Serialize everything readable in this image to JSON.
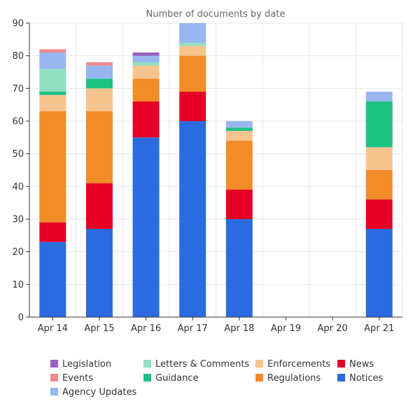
{
  "chart_data": {
    "type": "bar",
    "stacked": true,
    "title": "Number of documents by date",
    "xlabel": "",
    "ylabel": "",
    "ylim": [
      0,
      90
    ],
    "yticks": [
      0,
      10,
      20,
      30,
      40,
      50,
      60,
      70,
      80,
      90
    ],
    "grid": true,
    "legend_position": "bottom",
    "categories": [
      "Apr 14",
      "Apr 15",
      "Apr 16",
      "Apr 17",
      "Apr 18",
      "Apr 19",
      "Apr 20",
      "Apr 21"
    ],
    "series": [
      {
        "name": "Notices",
        "color": "#2b6be0",
        "values": [
          23,
          27,
          55,
          60,
          30,
          0,
          0,
          27
        ]
      },
      {
        "name": "News",
        "color": "#e60026",
        "values": [
          6,
          14,
          11,
          9,
          9,
          0,
          0,
          9
        ]
      },
      {
        "name": "Regulations",
        "color": "#f28c28",
        "values": [
          34,
          22,
          7,
          11,
          15,
          0,
          0,
          9
        ]
      },
      {
        "name": "Enforcements",
        "color": "#f8c48e",
        "values": [
          5,
          7,
          4,
          3,
          3,
          0,
          0,
          7
        ]
      },
      {
        "name": "Guidance",
        "color": "#1cc281",
        "values": [
          1,
          3,
          0,
          0,
          1,
          0,
          0,
          14
        ]
      },
      {
        "name": "Letters & Comments",
        "color": "#8fe0c2",
        "values": [
          7,
          0,
          1,
          1,
          0,
          0,
          0,
          0
        ]
      },
      {
        "name": "Agency Updates",
        "color": "#98b6ef",
        "values": [
          5,
          4,
          2,
          6,
          2,
          0,
          0,
          3
        ]
      },
      {
        "name": "Events",
        "color": "#f08a90",
        "values": [
          1,
          1,
          0,
          0,
          0,
          0,
          0,
          0
        ]
      },
      {
        "name": "Legislation",
        "color": "#9960c6",
        "values": [
          0,
          0,
          1,
          0,
          0,
          0,
          0,
          0
        ]
      }
    ],
    "legend_order": [
      "Legislation",
      "Letters & Comments",
      "Enforcements",
      "News",
      "Events",
      "Guidance",
      "Regulations",
      "Notices",
      "Agency Updates"
    ]
  }
}
